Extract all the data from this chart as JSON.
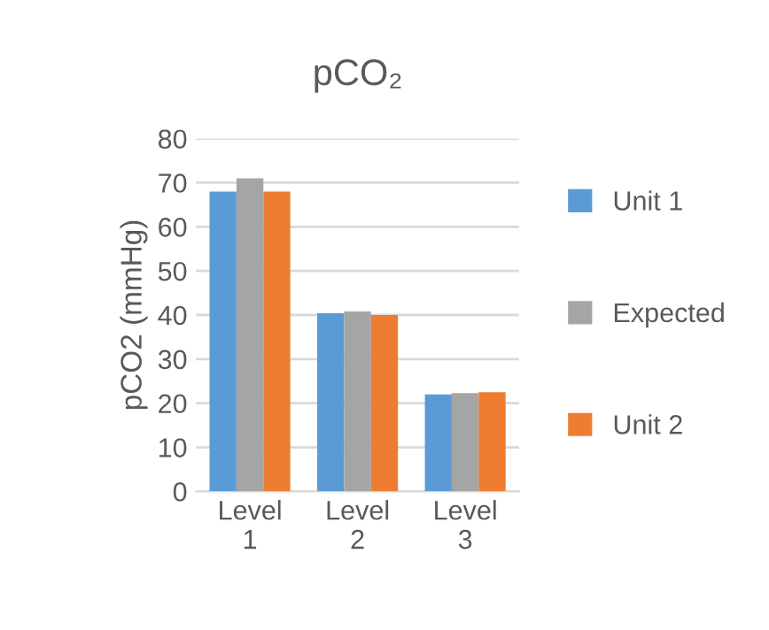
{
  "chart_data": {
    "type": "bar",
    "title": "pCO₂",
    "ylabel": "pCO2 (mmHg)",
    "categories": [
      "Level\n1",
      "Level\n2",
      "Level\n3"
    ],
    "series": [
      {
        "name": "Unit 1",
        "color": "#5b9bd5",
        "values": [
          68,
          40.4,
          22
        ]
      },
      {
        "name": "Expected",
        "color": "#a5a5a5",
        "values": [
          71,
          40.8,
          22.3
        ]
      },
      {
        "name": "Unit 2",
        "color": "#ed7d31",
        "values": [
          68,
          40,
          22.5
        ]
      }
    ],
    "ylim": [
      0,
      80
    ],
    "yticks": [
      0,
      10,
      20,
      30,
      40,
      50,
      60,
      70,
      80
    ],
    "grid": "y",
    "legend": "right"
  }
}
